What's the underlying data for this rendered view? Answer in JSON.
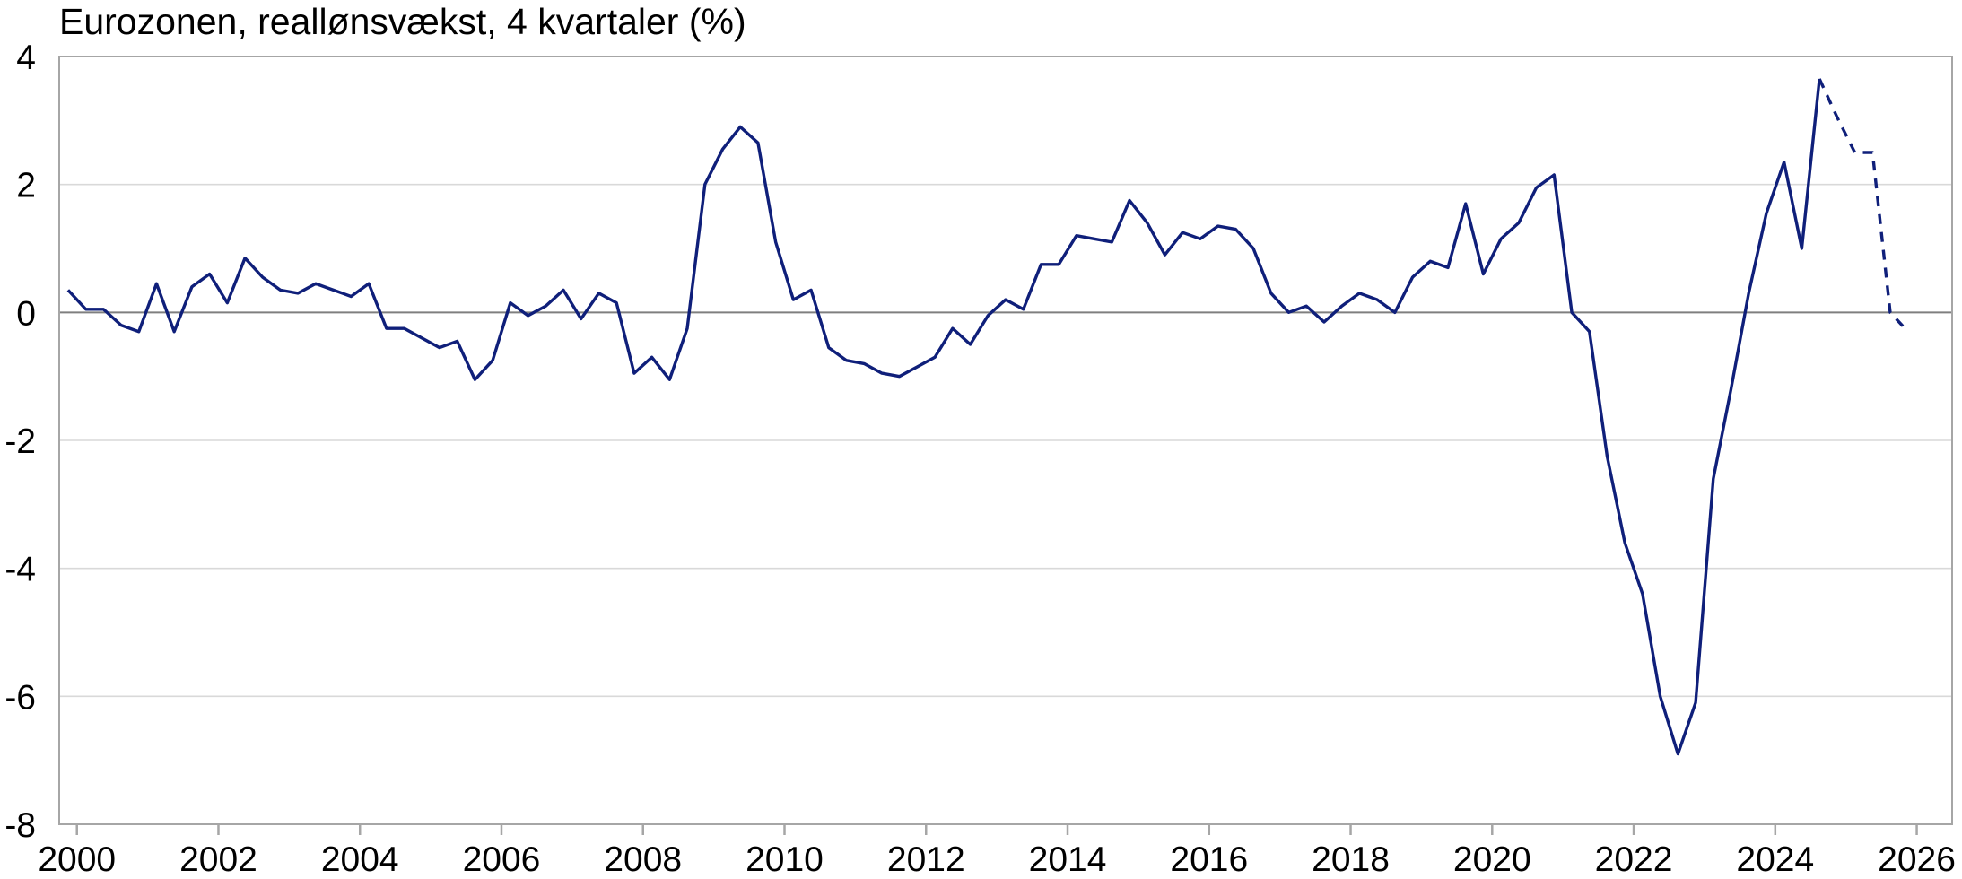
{
  "chart_data": {
    "type": "line",
    "title": "Eurozonen, reallønsvækst, 4 kvartaler (%)",
    "xlim": [
      1999.75,
      2026.5
    ],
    "xticks": [
      2000,
      2002,
      2004,
      2006,
      2008,
      2010,
      2012,
      2014,
      2016,
      2018,
      2020,
      2022,
      2024,
      2026
    ],
    "ylim": [
      -8,
      4
    ],
    "yticks": [
      -8,
      -6,
      -4,
      -2,
      0,
      2,
      4
    ],
    "grid": true,
    "series": [
      {
        "color": "#0f1f7a",
        "linestyle": "solid",
        "x": [
          1999.875,
          2000.125,
          2000.375,
          2000.625,
          2000.875,
          2001.125,
          2001.375,
          2001.625,
          2001.875,
          2002.125,
          2002.375,
          2002.625,
          2002.875,
          2003.125,
          2003.375,
          2003.625,
          2003.875,
          2004.125,
          2004.375,
          2004.625,
          2004.875,
          2005.125,
          2005.375,
          2005.625,
          2005.875,
          2006.125,
          2006.375,
          2006.625,
          2006.875,
          2007.125,
          2007.375,
          2007.625,
          2007.875,
          2008.125,
          2008.375,
          2008.625,
          2008.875,
          2009.125,
          2009.375,
          2009.625,
          2009.875,
          2010.125,
          2010.375,
          2010.625,
          2010.875,
          2011.125,
          2011.375,
          2011.625,
          2011.875,
          2012.125,
          2012.375,
          2012.625,
          2012.875,
          2013.125,
          2013.375,
          2013.625,
          2013.875,
          2014.125,
          2014.375,
          2014.625,
          2014.875,
          2015.125,
          2015.375,
          2015.625,
          2015.875,
          2016.125,
          2016.375,
          2016.625,
          2016.875,
          2017.125,
          2017.375,
          2017.625,
          2017.875,
          2018.125,
          2018.375,
          2018.625,
          2018.875,
          2019.125,
          2019.375,
          2019.625,
          2019.875,
          2020.125,
          2020.375,
          2020.625,
          2020.875,
          2021.125,
          2021.375,
          2021.625,
          2021.875,
          2022.125,
          2022.375,
          2022.625,
          2022.875,
          2023.125,
          2023.375,
          2023.625,
          2023.875,
          2024.125,
          2024.375,
          2024.625
        ],
        "values": [
          0.35,
          0.05,
          0.05,
          -0.2,
          -0.3,
          0.45,
          -0.3,
          0.4,
          0.6,
          0.15,
          0.85,
          0.55,
          0.35,
          0.3,
          0.45,
          0.35,
          0.25,
          0.45,
          -0.25,
          -0.25,
          -0.4,
          -0.55,
          -0.45,
          -1.05,
          -0.75,
          0.15,
          -0.05,
          0.1,
          0.35,
          -0.1,
          0.3,
          0.15,
          -0.95,
          -0.7,
          -1.05,
          -0.25,
          2.0,
          2.55,
          2.9,
          2.65,
          1.1,
          0.2,
          0.35,
          -0.55,
          -0.75,
          -0.8,
          -0.95,
          -1.0,
          -0.85,
          -0.7,
          -0.25,
          -0.5,
          -0.05,
          0.2,
          0.05,
          0.75,
          0.75,
          1.2,
          1.15,
          1.1,
          1.75,
          1.4,
          0.9,
          1.25,
          1.15,
          1.35,
          1.3,
          1.0,
          0.3,
          0.0,
          0.1,
          -0.15,
          0.1,
          0.3,
          0.2,
          0.0,
          0.55,
          0.8,
          0.7,
          1.7,
          0.6,
          1.15,
          1.4,
          1.95,
          2.15,
          0.0,
          -0.3,
          -2.25,
          -3.6,
          -4.4,
          -6.0,
          -6.9,
          -6.1,
          -2.6,
          -1.2,
          0.3,
          1.55,
          2.35,
          1.0,
          3.65
        ]
      },
      {
        "color": "#0f1f7a",
        "linestyle": "dashed",
        "x": [
          2024.625,
          2024.875,
          2025.125,
          2025.375,
          2025.625,
          2025.875
        ],
        "values": [
          3.65,
          3.05,
          2.5,
          2.5,
          0.0,
          -0.3
        ]
      }
    ]
  }
}
